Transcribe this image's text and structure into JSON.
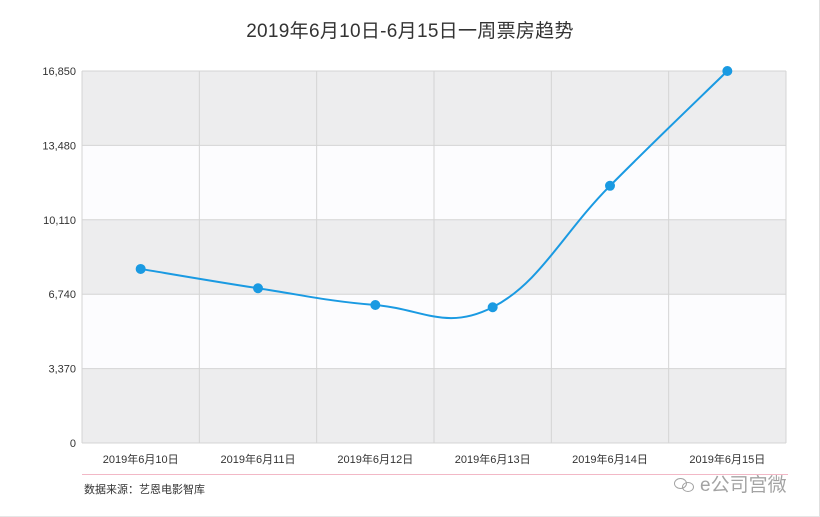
{
  "chart_data": {
    "type": "line",
    "title": "2019年6月10日-6月15日一周票房趋势",
    "categories": [
      "2019年6月10日",
      "2019年6月11日",
      "2019年6月12日",
      "2019年6月13日",
      "2019年6月14日",
      "2019年6月15日"
    ],
    "series": [
      {
        "values": [
          7884,
          7010,
          6250,
          6150,
          11650,
          16850
        ]
      }
    ],
    "yticks": [
      0,
      3370,
      6740,
      10110,
      13480,
      16850
    ],
    "ytick_labels": [
      "0",
      "3,370",
      "6,740",
      "10,110",
      "13,480",
      "16,850"
    ],
    "ylim": [
      0,
      16850
    ],
    "grid": true,
    "legend": "none",
    "colors": {
      "line": "#1a9ae2",
      "band_dark": "#ededee",
      "band_light": "#fcfcfe",
      "grid": "#d4d4d4"
    }
  },
  "footer": {
    "source": "数据来源：艺恩电影智库",
    "watermark": "e公司宫微"
  }
}
